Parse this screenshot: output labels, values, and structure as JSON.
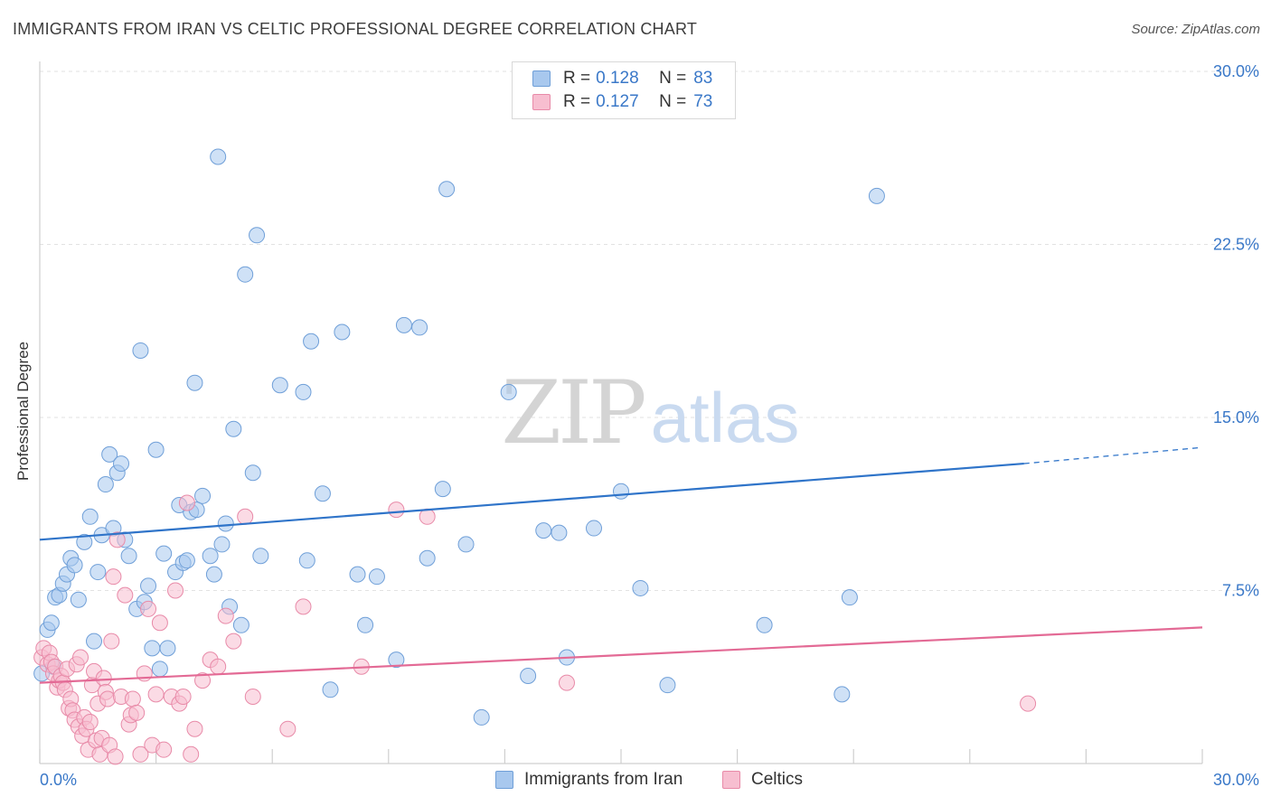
{
  "header": {
    "title": "IMMIGRANTS FROM IRAN VS CELTIC PROFESSIONAL DEGREE CORRELATION CHART",
    "source": "Source: ZipAtlas.com"
  },
  "watermark": {
    "zip": "ZIP",
    "atlas": "atlas"
  },
  "legend": {
    "rows": [
      {
        "r_label": "R = ",
        "r_value": "0.128",
        "n_label": "N = ",
        "n_value": "83",
        "color": "#a8c8ee",
        "border": "#6f9fd8"
      },
      {
        "r_label": "R = ",
        "r_value": "0.127",
        "n_label": "N = ",
        "n_value": "73",
        "color": "#f7bed0",
        "border": "#e88aa8"
      }
    ]
  },
  "bottom_legend": {
    "items": [
      {
        "label": "Immigrants from Iran",
        "color": "#a8c8ee",
        "border": "#6f9fd8"
      },
      {
        "label": "Celtics",
        "color": "#f7bed0",
        "border": "#e88aa8"
      }
    ]
  },
  "chart_data": {
    "type": "scatter",
    "title": "IMMIGRANTS FROM IRAN VS CELTIC PROFESSIONAL DEGREE CORRELATION CHART",
    "xlabel": "",
    "ylabel": "Professional Degree",
    "xlim": [
      0,
      30
    ],
    "ylim": [
      0,
      30
    ],
    "x_tick_labels": [
      "0.0%",
      "30.0%"
    ],
    "y_tick_values": [
      7.5,
      15.0,
      22.5,
      30.0
    ],
    "y_tick_labels": [
      "7.5%",
      "15.0%",
      "22.5%",
      "30.0%"
    ],
    "grid": true,
    "series": [
      {
        "name": "Immigrants from Iran",
        "color": "#6f9fd8",
        "fill": "#a8c8ee",
        "trend": {
          "x0": 0,
          "y0": 9.7,
          "x1": 25.4,
          "y1": 13.0,
          "dash_to_x": 30,
          "dash_to_y": 13.7,
          "color": "#2f74c9"
        },
        "points": [
          [
            0.05,
            3.9
          ],
          [
            0.2,
            5.8
          ],
          [
            0.3,
            6.1
          ],
          [
            0.35,
            4.2
          ],
          [
            0.4,
            7.2
          ],
          [
            0.5,
            7.3
          ],
          [
            0.6,
            7.8
          ],
          [
            0.7,
            8.2
          ],
          [
            0.8,
            8.9
          ],
          [
            0.9,
            8.6
          ],
          [
            1.0,
            7.1
          ],
          [
            1.15,
            9.6
          ],
          [
            1.3,
            10.7
          ],
          [
            1.4,
            5.3
          ],
          [
            1.5,
            8.3
          ],
          [
            1.6,
            9.9
          ],
          [
            1.7,
            12.1
          ],
          [
            1.8,
            13.4
          ],
          [
            1.9,
            10.2
          ],
          [
            2.0,
            12.6
          ],
          [
            2.1,
            13.0
          ],
          [
            2.2,
            9.7
          ],
          [
            2.3,
            9.0
          ],
          [
            2.5,
            6.7
          ],
          [
            2.6,
            17.9
          ],
          [
            2.7,
            7.0
          ],
          [
            2.8,
            7.7
          ],
          [
            2.9,
            5.0
          ],
          [
            3.0,
            13.6
          ],
          [
            3.1,
            4.1
          ],
          [
            3.2,
            9.1
          ],
          [
            3.3,
            5.0
          ],
          [
            3.5,
            8.3
          ],
          [
            3.6,
            11.2
          ],
          [
            3.7,
            8.7
          ],
          [
            3.8,
            8.8
          ],
          [
            3.9,
            10.9
          ],
          [
            4.0,
            16.5
          ],
          [
            4.05,
            11.0
          ],
          [
            4.2,
            11.6
          ],
          [
            4.4,
            9.0
          ],
          [
            4.5,
            8.2
          ],
          [
            4.6,
            26.3
          ],
          [
            4.7,
            9.5
          ],
          [
            4.8,
            10.4
          ],
          [
            4.9,
            6.8
          ],
          [
            5.0,
            14.5
          ],
          [
            5.2,
            6.0
          ],
          [
            5.3,
            21.2
          ],
          [
            5.5,
            12.6
          ],
          [
            5.6,
            22.9
          ],
          [
            5.7,
            9.0
          ],
          [
            6.2,
            16.4
          ],
          [
            6.8,
            16.1
          ],
          [
            6.9,
            8.8
          ],
          [
            7.0,
            18.3
          ],
          [
            7.3,
            11.7
          ],
          [
            7.5,
            3.2
          ],
          [
            7.8,
            18.7
          ],
          [
            8.2,
            8.2
          ],
          [
            8.4,
            6.0
          ],
          [
            8.7,
            8.1
          ],
          [
            9.2,
            4.5
          ],
          [
            9.4,
            19.0
          ],
          [
            9.8,
            18.9
          ],
          [
            10.0,
            8.9
          ],
          [
            10.4,
            11.9
          ],
          [
            10.5,
            24.9
          ],
          [
            11.0,
            9.5
          ],
          [
            11.4,
            2.0
          ],
          [
            12.1,
            16.1
          ],
          [
            12.6,
            3.8
          ],
          [
            13.0,
            10.1
          ],
          [
            13.4,
            10.0
          ],
          [
            13.6,
            4.6
          ],
          [
            14.3,
            10.2
          ],
          [
            15.0,
            11.8
          ],
          [
            15.5,
            7.6
          ],
          [
            16.2,
            3.4
          ],
          [
            18.7,
            6.0
          ],
          [
            20.7,
            3.0
          ],
          [
            20.9,
            7.2
          ],
          [
            21.6,
            24.6
          ]
        ]
      },
      {
        "name": "Celtics",
        "color": "#e88aa8",
        "fill": "#f7bed0",
        "trend": {
          "x0": 0,
          "y0": 3.5,
          "x1": 30,
          "y1": 5.9,
          "color": "#e36a95"
        },
        "points": [
          [
            0.05,
            4.6
          ],
          [
            0.1,
            5.0
          ],
          [
            0.2,
            4.3
          ],
          [
            0.25,
            4.8
          ],
          [
            0.3,
            4.4
          ],
          [
            0.35,
            3.9
          ],
          [
            0.4,
            4.2
          ],
          [
            0.45,
            3.3
          ],
          [
            0.5,
            3.6
          ],
          [
            0.55,
            3.8
          ],
          [
            0.6,
            3.5
          ],
          [
            0.65,
            3.2
          ],
          [
            0.7,
            4.1
          ],
          [
            0.75,
            2.4
          ],
          [
            0.8,
            2.8
          ],
          [
            0.85,
            2.3
          ],
          [
            0.9,
            1.9
          ],
          [
            0.95,
            4.3
          ],
          [
            1.0,
            1.6
          ],
          [
            1.05,
            4.6
          ],
          [
            1.1,
            1.2
          ],
          [
            1.15,
            2.0
          ],
          [
            1.2,
            1.5
          ],
          [
            1.25,
            0.6
          ],
          [
            1.3,
            1.8
          ],
          [
            1.35,
            3.4
          ],
          [
            1.4,
            4.0
          ],
          [
            1.45,
            1.0
          ],
          [
            1.5,
            2.6
          ],
          [
            1.55,
            0.4
          ],
          [
            1.6,
            1.1
          ],
          [
            1.65,
            3.7
          ],
          [
            1.7,
            3.1
          ],
          [
            1.75,
            2.8
          ],
          [
            1.8,
            0.8
          ],
          [
            1.85,
            5.3
          ],
          [
            1.9,
            8.1
          ],
          [
            1.95,
            0.3
          ],
          [
            2.0,
            9.7
          ],
          [
            2.1,
            2.9
          ],
          [
            2.2,
            7.3
          ],
          [
            2.3,
            1.7
          ],
          [
            2.35,
            2.1
          ],
          [
            2.4,
            2.8
          ],
          [
            2.5,
            2.2
          ],
          [
            2.6,
            0.4
          ],
          [
            2.7,
            3.9
          ],
          [
            2.8,
            6.7
          ],
          [
            2.9,
            0.8
          ],
          [
            3.0,
            3.0
          ],
          [
            3.1,
            6.1
          ],
          [
            3.2,
            0.6
          ],
          [
            3.4,
            2.9
          ],
          [
            3.5,
            7.5
          ],
          [
            3.6,
            2.6
          ],
          [
            3.7,
            2.9
          ],
          [
            3.8,
            11.3
          ],
          [
            3.9,
            0.4
          ],
          [
            4.0,
            1.5
          ],
          [
            4.2,
            3.6
          ],
          [
            4.4,
            4.5
          ],
          [
            4.6,
            4.2
          ],
          [
            4.8,
            6.4
          ],
          [
            5.0,
            5.3
          ],
          [
            5.3,
            10.7
          ],
          [
            5.5,
            2.9
          ],
          [
            6.4,
            1.5
          ],
          [
            6.8,
            6.8
          ],
          [
            8.3,
            4.2
          ],
          [
            9.2,
            11.0
          ],
          [
            10.0,
            10.7
          ],
          [
            13.6,
            3.5
          ],
          [
            25.5,
            2.6
          ]
        ]
      }
    ]
  }
}
